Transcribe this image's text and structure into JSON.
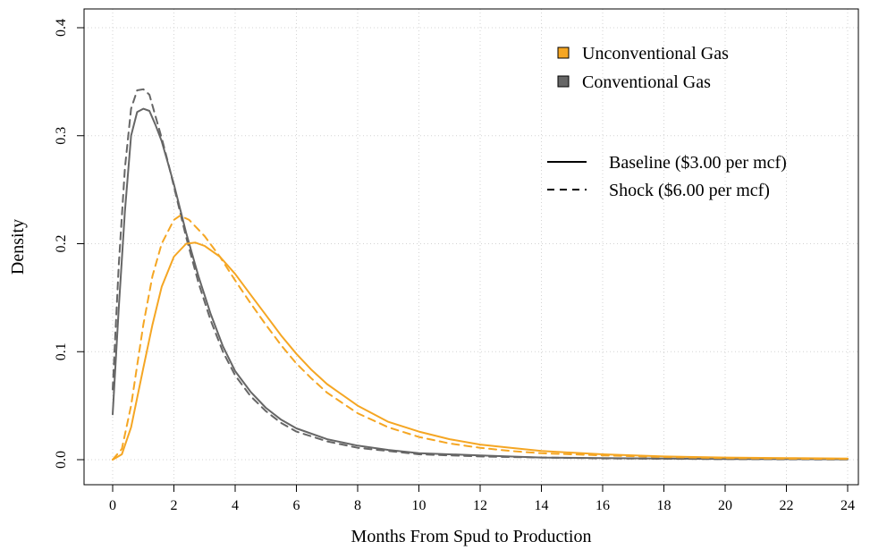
{
  "chart_data": {
    "type": "line",
    "title": "",
    "xlabel": "Months From Spud to Production",
    "ylabel": "Density",
    "xlim": [
      0,
      24
    ],
    "ylim": [
      0,
      0.4
    ],
    "x_ticks": [
      0,
      2,
      4,
      6,
      8,
      10,
      12,
      14,
      16,
      18,
      20,
      22,
      24
    ],
    "y_ticks": [
      0.0,
      0.1,
      0.2,
      0.3,
      0.4
    ],
    "x_tick_labels": [
      "0",
      "2",
      "4",
      "6",
      "8",
      "10",
      "12",
      "14",
      "16",
      "18",
      "20",
      "22",
      "24"
    ],
    "y_tick_labels": [
      "0.0",
      "0.1",
      "0.2",
      "0.3",
      "0.4"
    ],
    "grid": true,
    "legend_placement": "top-right",
    "legend_gas": [
      {
        "label": "Unconventional Gas",
        "color": "#f5a623"
      },
      {
        "label": "Conventional Gas",
        "color": "#666666"
      }
    ],
    "legend_scenario": [
      {
        "label": "Baseline ($3.00 per mcf)",
        "line_style": "solid"
      },
      {
        "label": "Shock ($6.00 per mcf)",
        "line_style": "dashed"
      }
    ],
    "series": [
      {
        "name": "Conventional Gas",
        "scenario": "Baseline ($3.00 per mcf)",
        "color": "#666666",
        "line_style": "solid",
        "x": [
          0,
          0.2,
          0.4,
          0.6,
          0.8,
          1.0,
          1.2,
          1.4,
          1.6,
          1.8,
          2.0,
          2.4,
          2.8,
          3.2,
          3.6,
          4.0,
          4.5,
          5.0,
          5.5,
          6.0,
          7.0,
          8.0,
          9.0,
          10.0,
          12.0,
          14.0,
          16.0,
          18.0,
          20.0,
          22.0,
          24.0
        ],
        "y": [
          0.042,
          0.14,
          0.23,
          0.3,
          0.322,
          0.325,
          0.323,
          0.31,
          0.295,
          0.275,
          0.255,
          0.21,
          0.17,
          0.135,
          0.105,
          0.082,
          0.063,
          0.048,
          0.037,
          0.029,
          0.019,
          0.013,
          0.009,
          0.006,
          0.004,
          0.002,
          0.0015,
          0.001,
          0.0007,
          0.0005,
          0.0003
        ]
      },
      {
        "name": "Conventional Gas",
        "scenario": "Shock ($6.00 per mcf)",
        "color": "#666666",
        "line_style": "dashed",
        "x": [
          0,
          0.2,
          0.4,
          0.6,
          0.8,
          1.0,
          1.2,
          1.4,
          1.6,
          1.8,
          2.0,
          2.4,
          2.8,
          3.2,
          3.6,
          4.0,
          4.5,
          5.0,
          5.5,
          6.0,
          7.0,
          8.0,
          9.0,
          10.0,
          12.0,
          14.0,
          16.0,
          18.0,
          20.0,
          22.0,
          24.0
        ],
        "y": [
          0.065,
          0.18,
          0.27,
          0.325,
          0.342,
          0.343,
          0.338,
          0.318,
          0.298,
          0.276,
          0.253,
          0.206,
          0.164,
          0.129,
          0.1,
          0.078,
          0.059,
          0.045,
          0.034,
          0.026,
          0.017,
          0.011,
          0.008,
          0.005,
          0.003,
          0.002,
          0.0012,
          0.0008,
          0.0005,
          0.0003,
          0.0002
        ]
      },
      {
        "name": "Unconventional Gas",
        "scenario": "Baseline ($3.00 per mcf)",
        "color": "#f5a623",
        "line_style": "solid",
        "x": [
          0,
          0.3,
          0.6,
          1.0,
          1.3,
          1.6,
          2.0,
          2.4,
          2.7,
          3.0,
          3.5,
          4.0,
          4.5,
          5.0,
          5.5,
          6.0,
          6.5,
          7.0,
          8.0,
          9.0,
          10.0,
          11.0,
          12.0,
          13.0,
          14.0,
          16.0,
          18.0,
          20.0,
          22.0,
          24.0
        ],
        "y": [
          0.0,
          0.005,
          0.03,
          0.085,
          0.125,
          0.16,
          0.188,
          0.2,
          0.201,
          0.198,
          0.188,
          0.172,
          0.153,
          0.134,
          0.115,
          0.098,
          0.083,
          0.07,
          0.05,
          0.035,
          0.026,
          0.019,
          0.014,
          0.011,
          0.008,
          0.005,
          0.003,
          0.002,
          0.0015,
          0.001
        ]
      },
      {
        "name": "Unconventional Gas",
        "scenario": "Shock ($6.00 per mcf)",
        "color": "#f5a623",
        "line_style": "dashed",
        "x": [
          0,
          0.3,
          0.6,
          1.0,
          1.3,
          1.6,
          2.0,
          2.2,
          2.5,
          3.0,
          3.5,
          4.0,
          4.5,
          5.0,
          5.5,
          6.0,
          6.5,
          7.0,
          8.0,
          9.0,
          10.0,
          11.0,
          12.0,
          13.0,
          14.0,
          16.0,
          18.0,
          20.0,
          22.0,
          24.0
        ],
        "y": [
          0.0,
          0.01,
          0.05,
          0.125,
          0.17,
          0.2,
          0.222,
          0.226,
          0.222,
          0.207,
          0.188,
          0.166,
          0.145,
          0.125,
          0.106,
          0.089,
          0.075,
          0.062,
          0.043,
          0.03,
          0.021,
          0.015,
          0.011,
          0.008,
          0.006,
          0.004,
          0.0025,
          0.0015,
          0.001,
          0.0007
        ]
      }
    ]
  }
}
